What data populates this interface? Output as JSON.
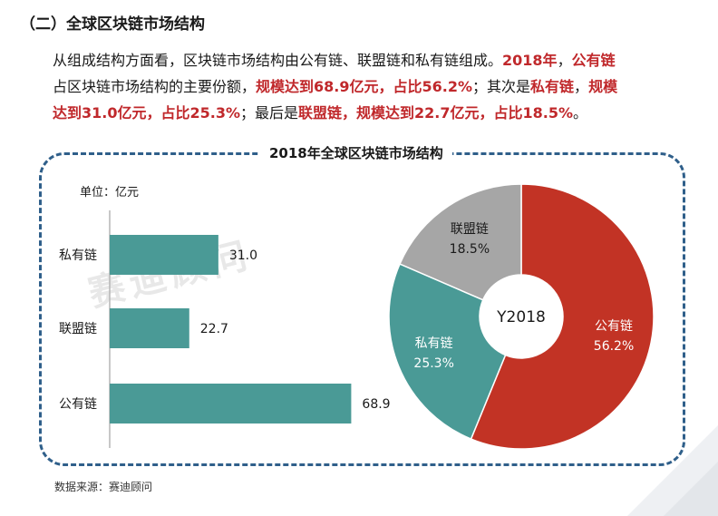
{
  "section_title": "（二）全球区块链市场结构",
  "paragraph": {
    "line1_a": "从组成结构方面看，区块链市场结构由公有链、联盟链和私有链组成。",
    "line1_b": "2018年",
    "line1_c": "，",
    "line1_d": "公有链",
    "line2_a": "占区块链市场结构的主要份额，",
    "line2_b": "规模达到68.9亿元，占比56.2%",
    "line2_c": "；其次是",
    "line2_d": "私有链",
    "line2_e": "，",
    "line2_f": "规模",
    "line3_a": "达到31.0亿元，占比25.3%",
    "line3_b": "；最后是",
    "line3_c": "联盟链，规模达到22.7亿元，占比18.5%",
    "line3_d": "。"
  },
  "unit_label": "单位：亿元",
  "source": "数据来源：赛迪顾问",
  "watermark": "赛迪顾问",
  "colors": {
    "bar": "#4a9a96",
    "public": "#c23325",
    "private": "#4a9a96",
    "alliance": "#a6a6a6",
    "frame": "#2f5f8a",
    "highlight": "#c0282b"
  },
  "chart_data": [
    {
      "type": "bar",
      "orientation": "horizontal",
      "title": "2018年全球区块链市场结构",
      "categories": [
        "私有链",
        "联盟链",
        "公有链"
      ],
      "values": [
        31.0,
        22.7,
        68.9
      ],
      "value_labels": [
        "31.0",
        "22.7",
        "68.9"
      ],
      "xlim": [
        0,
        75
      ],
      "grid": false
    },
    {
      "type": "pie",
      "style": "donut",
      "center_label": "Y2018",
      "slices": [
        {
          "label": "公有链",
          "value": 56.2,
          "text": "56.2%",
          "color": "#c23325"
        },
        {
          "label": "私有链",
          "value": 25.3,
          "text": "25.3%",
          "color": "#4a9a96"
        },
        {
          "label": "联盟链",
          "value": 18.5,
          "text": "18.5%",
          "color": "#a6a6a6"
        }
      ]
    }
  ]
}
